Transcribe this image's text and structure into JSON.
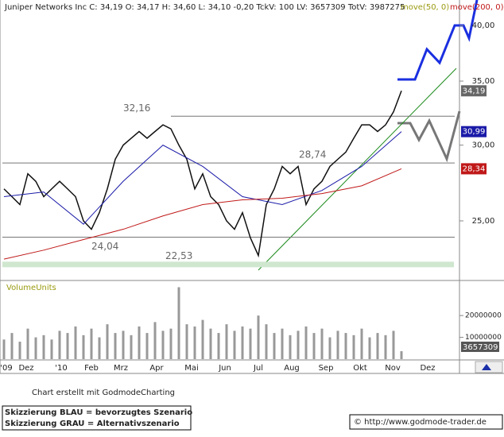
{
  "chart_data": {
    "type": "line",
    "title": "Juniper Networks Inc C: 34,19 O: 34,17 H: 34,60 L: 34,10 -0,20 TckV: 100 LV: 3657309 TotV: 3987275",
    "ylog": true,
    "ylim": [
      21.7,
      42.3
    ],
    "yticks": [
      {
        "value": 40,
        "label": "40,00"
      },
      {
        "value": 35,
        "label": "35,00"
      },
      {
        "value": 30,
        "label": "30,00"
      },
      {
        "value": 25,
        "label": "25,00"
      }
    ],
    "xtick_labels": [
      "'09",
      "Dez",
      "'10",
      "Feb",
      "Mrz",
      "Apr",
      "Mai",
      "Jun",
      "Jul",
      "Aug",
      "Sep",
      "Okt",
      "Nov",
      "Dez"
    ],
    "series": [
      {
        "name": "Juniper Networks Inc",
        "color": "#111111",
        "values": [
          27,
          26.5,
          26,
          28,
          27.5,
          26.5,
          27,
          27.5,
          27,
          26.5,
          25,
          24.5,
          25.5,
          27,
          29,
          30,
          30.5,
          31,
          30.5,
          31,
          31.5,
          31.2,
          30,
          29,
          27,
          28,
          26.5,
          26,
          25,
          24.5,
          25.5,
          24,
          23,
          26,
          27,
          28.5,
          28,
          28.5,
          26,
          27,
          27.5,
          28.5,
          29,
          29.5,
          30.5,
          31.5,
          31.5,
          31,
          31.5,
          32.5,
          34.19
        ]
      },
      {
        "name": "move(50, 0)",
        "color": "#1a1aa8",
        "values": [
          26.5,
          26.8,
          24.8,
          27.5,
          30.0,
          28.5,
          26.5,
          26.0,
          26.9,
          28.5,
          30.99
        ]
      },
      {
        "name": "move(200, 0)",
        "color": "#c01818",
        "values": [
          22.8,
          23.3,
          23.9,
          24.5,
          25.3,
          26.0,
          26.3,
          26.4,
          26.7,
          27.2,
          28.34
        ]
      }
    ],
    "levels": [
      {
        "value": 32.16,
        "label": "32,16"
      },
      {
        "value": 28.74,
        "label": "28,74"
      },
      {
        "value": 24.04,
        "label": "24,04"
      },
      {
        "value": 22.53,
        "label": "22,53"
      }
    ],
    "last_values": [
      {
        "value": 34.19,
        "label": "34,19"
      },
      {
        "value": 30.99,
        "label": "30,99"
      },
      {
        "value": 28.34,
        "label": "28,34"
      }
    ],
    "volume": {
      "label": "VolumeUnits",
      "ylim": [
        0,
        35000000
      ],
      "yticks": [
        20000000,
        10000000
      ],
      "last": 3657309,
      "values": [
        9000000,
        12000000,
        8000000,
        14000000,
        10000000,
        11000000,
        9000000,
        13000000,
        12000000,
        15000000,
        11000000,
        14000000,
        10000000,
        16000000,
        12000000,
        13000000,
        11000000,
        15000000,
        12000000,
        17000000,
        13000000,
        14000000,
        33000000,
        16000000,
        15000000,
        18000000,
        14000000,
        12000000,
        16000000,
        13000000,
        15000000,
        14000000,
        20000000,
        16000000,
        12000000,
        14000000,
        11000000,
        13000000,
        15000000,
        12000000,
        14000000,
        10000000,
        13000000,
        12000000,
        11000000,
        14000000,
        10000000,
        12000000,
        11000000,
        13000000,
        3657309
      ]
    },
    "footer": {
      "credit": "Chart erstellt mit GodmodeCharting",
      "note_blue": "Skizzierung BLAU = bevorzugtes Szenario",
      "note_gray": "Skizzierung GRAU = Alternativszenario",
      "url": "© http://www.godmode-trader.de"
    }
  }
}
